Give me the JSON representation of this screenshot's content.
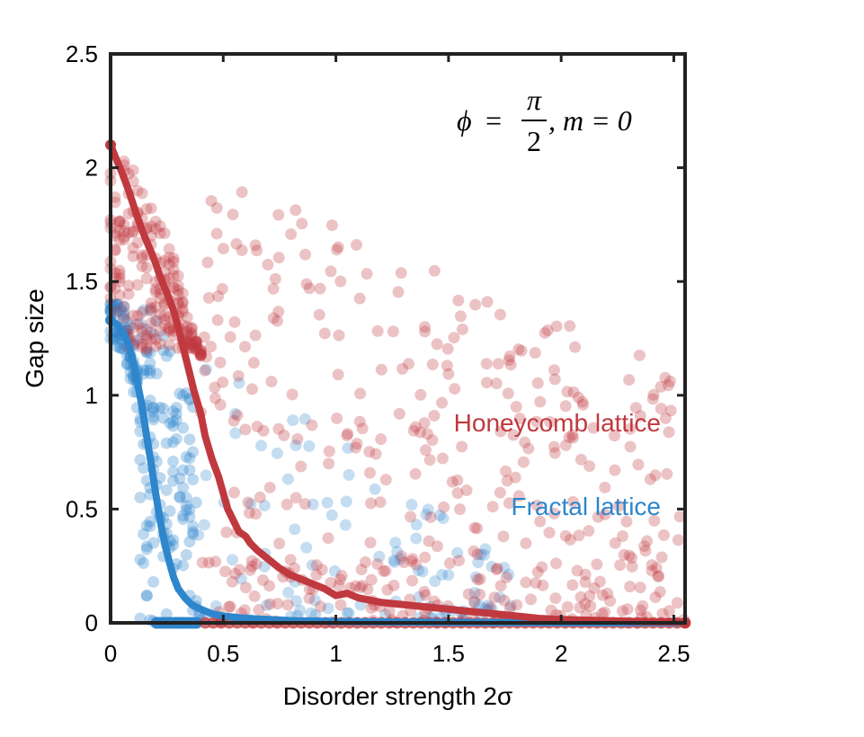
{
  "chart_data": {
    "type": "scatter",
    "title": "",
    "xlabel": "Disorder strength 2σ",
    "ylabel": "Gap size",
    "xlim": [
      0,
      2.55
    ],
    "ylim": [
      0,
      2.5
    ],
    "xticks": [
      0,
      0.5,
      1,
      1.5,
      2,
      2.5
    ],
    "yticks": [
      0,
      0.5,
      1,
      1.5,
      2,
      2.5
    ],
    "xtick_labels": [
      "0",
      "0.5",
      "1",
      "1.5",
      "2",
      "2.5"
    ],
    "ytick_labels": [
      "0",
      "0.5",
      "1",
      "1.5",
      "2",
      "2.5"
    ],
    "grid": false,
    "annotation": {
      "phi": "ϕ",
      "equals": "=",
      "numerator": "π",
      "denominator": "2",
      "rest": ", m = 0"
    },
    "series": [
      {
        "name": "Honeycomb lattice",
        "color": "#c0393f",
        "mean_curve": {
          "x": [
            0,
            0.02,
            0.05,
            0.08,
            0.1,
            0.12,
            0.15,
            0.18,
            0.2,
            0.22,
            0.25,
            0.28,
            0.3,
            0.32,
            0.35,
            0.37,
            0.4,
            0.42,
            0.45,
            0.48,
            0.5,
            0.52,
            0.55,
            0.57,
            0.6,
            0.62,
            0.65,
            0.7,
            0.75,
            0.8,
            0.85,
            0.9,
            0.95,
            1.0,
            1.05,
            1.1,
            1.15,
            1.2,
            1.3,
            1.4,
            1.5,
            1.6,
            1.7,
            1.8,
            1.9,
            2.0,
            2.1,
            2.2,
            2.3,
            2.4,
            2.55
          ],
          "y": [
            2.1,
            2.05,
            1.98,
            1.9,
            1.84,
            1.78,
            1.7,
            1.63,
            1.58,
            1.52,
            1.45,
            1.37,
            1.3,
            1.22,
            1.1,
            1.02,
            0.92,
            0.82,
            0.72,
            0.64,
            0.57,
            0.5,
            0.44,
            0.4,
            0.38,
            0.35,
            0.32,
            0.28,
            0.24,
            0.21,
            0.19,
            0.17,
            0.15,
            0.12,
            0.13,
            0.11,
            0.1,
            0.09,
            0.08,
            0.07,
            0.06,
            0.05,
            0.04,
            0.03,
            0.02,
            0.015,
            0.012,
            0.01,
            0.007,
            0.005,
            0.003
          ]
        }
      },
      {
        "name": "Fractal lattice",
        "color": "#2e86cc",
        "mean_curve": {
          "x": [
            0,
            0.03,
            0.06,
            0.08,
            0.1,
            0.12,
            0.14,
            0.16,
            0.18,
            0.2,
            0.22,
            0.24,
            0.26,
            0.28,
            0.3,
            0.33,
            0.36,
            0.4,
            0.45,
            0.5,
            0.6,
            0.7,
            0.8,
            1.0,
            1.2,
            1.5,
            2.0,
            2.55
          ],
          "y": [
            1.33,
            1.31,
            1.27,
            1.22,
            1.15,
            1.05,
            0.95,
            0.82,
            0.7,
            0.57,
            0.45,
            0.35,
            0.27,
            0.2,
            0.15,
            0.11,
            0.08,
            0.06,
            0.04,
            0.03,
            0.02,
            0.015,
            0.01,
            0.006,
            0.004,
            0.002,
            0.001,
            0.0
          ]
        }
      }
    ]
  }
}
